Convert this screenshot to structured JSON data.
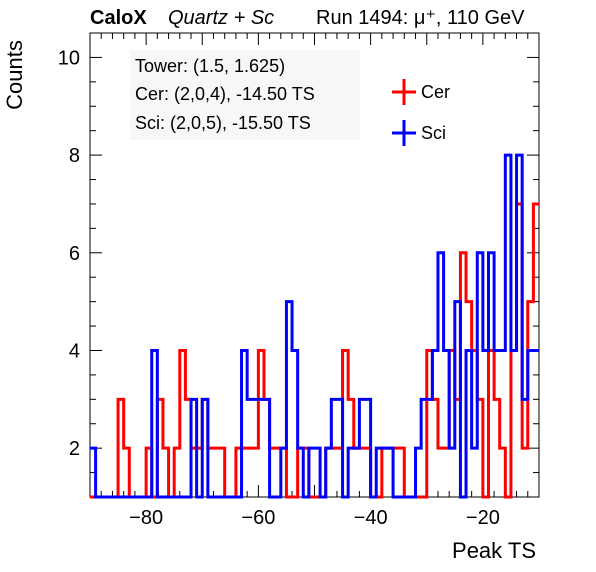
{
  "header": {
    "brand": "CaloX",
    "tag": "Quartz + Sc",
    "run": "Run 1494:   μ⁺, 110 GeV"
  },
  "info": {
    "tower": "Tower: (1.5, 1.625)",
    "cer": "Cer: (2,0,4), -14.50 TS",
    "sci": "Sci: (2,0,5), -15.50 TS"
  },
  "chart_data": {
    "type": "step",
    "xlabel": "Peak TS",
    "ylabel": "Counts",
    "xlim": [
      -90,
      -10
    ],
    "ylim": [
      1,
      10.5
    ],
    "bin_width": 1,
    "x_ticks": [
      -80,
      -60,
      -40,
      -20
    ],
    "y_ticks": [
      2,
      4,
      6,
      8,
      10
    ],
    "legend_position": "top-right",
    "colors": {
      "Cer": "#ff0000",
      "Sci": "#0000ff"
    },
    "series": [
      {
        "name": "Cer",
        "bins": [
          [
            -85,
            3
          ],
          [
            -84,
            2
          ],
          [
            -80,
            2
          ],
          [
            -78,
            3
          ],
          [
            -77,
            2
          ],
          [
            -75,
            2
          ],
          [
            -74,
            4
          ],
          [
            -73,
            3
          ],
          [
            -72,
            2
          ],
          [
            -71,
            2
          ],
          [
            -70,
            3
          ],
          [
            -69,
            2
          ],
          [
            -68,
            2
          ],
          [
            -67,
            2
          ],
          [
            -64,
            2
          ],
          [
            -63,
            2
          ],
          [
            -62,
            2
          ],
          [
            -61,
            2
          ],
          [
            -60,
            4
          ],
          [
            -59,
            3
          ],
          [
            -58,
            2
          ],
          [
            -57,
            2
          ],
          [
            -56,
            2
          ],
          [
            -53,
            2
          ],
          [
            -52,
            2
          ],
          [
            -48,
            2
          ],
          [
            -47,
            2
          ],
          [
            -46,
            2
          ],
          [
            -45,
            4
          ],
          [
            -44,
            3
          ],
          [
            -43,
            2
          ],
          [
            -42,
            2
          ],
          [
            -41,
            2
          ],
          [
            -38,
            2
          ],
          [
            -37,
            2
          ],
          [
            -36,
            2
          ],
          [
            -35,
            2
          ],
          [
            -30,
            4
          ],
          [
            -29,
            3
          ],
          [
            -28,
            2
          ],
          [
            -27,
            2
          ],
          [
            -26,
            4
          ],
          [
            -25,
            3
          ],
          [
            -24,
            6
          ],
          [
            -23,
            5
          ],
          [
            -22,
            4
          ],
          [
            -21,
            3
          ],
          [
            -19,
            4
          ],
          [
            -18,
            3
          ],
          [
            -17,
            2
          ],
          [
            -15,
            4
          ],
          [
            -14,
            7
          ],
          [
            -13,
            2
          ],
          [
            -12,
            5
          ],
          [
            -11,
            7
          ]
        ]
      },
      {
        "name": "Sci",
        "bins": [
          [
            -90,
            2
          ],
          [
            -79,
            4
          ],
          [
            -72,
            3
          ],
          [
            -70,
            3
          ],
          [
            -63,
            4
          ],
          [
            -62,
            3
          ],
          [
            -61,
            3
          ],
          [
            -60,
            3
          ],
          [
            -59,
            3
          ],
          [
            -56,
            2
          ],
          [
            -55,
            5
          ],
          [
            -54,
            4
          ],
          [
            -53,
            2
          ],
          [
            -51,
            2
          ],
          [
            -50,
            2
          ],
          [
            -48,
            2
          ],
          [
            -47,
            3
          ],
          [
            -46,
            3
          ],
          [
            -44,
            2
          ],
          [
            -43,
            2
          ],
          [
            -42,
            3
          ],
          [
            -41,
            3
          ],
          [
            -39,
            2
          ],
          [
            -38,
            2
          ],
          [
            -37,
            2
          ],
          [
            -32,
            2
          ],
          [
            -31,
            3
          ],
          [
            -30,
            3
          ],
          [
            -29,
            4
          ],
          [
            -28,
            6
          ],
          [
            -27,
            4
          ],
          [
            -26,
            2
          ],
          [
            -25,
            5
          ],
          [
            -23,
            4
          ],
          [
            -22,
            2
          ],
          [
            -21,
            6
          ],
          [
            -20,
            4
          ],
          [
            -19,
            6
          ],
          [
            -18,
            4
          ],
          [
            -17,
            4
          ],
          [
            -16,
            8
          ],
          [
            -15,
            4
          ],
          [
            -14,
            8
          ],
          [
            -13,
            3
          ],
          [
            -12,
            4
          ],
          [
            -11,
            4
          ]
        ]
      }
    ]
  }
}
